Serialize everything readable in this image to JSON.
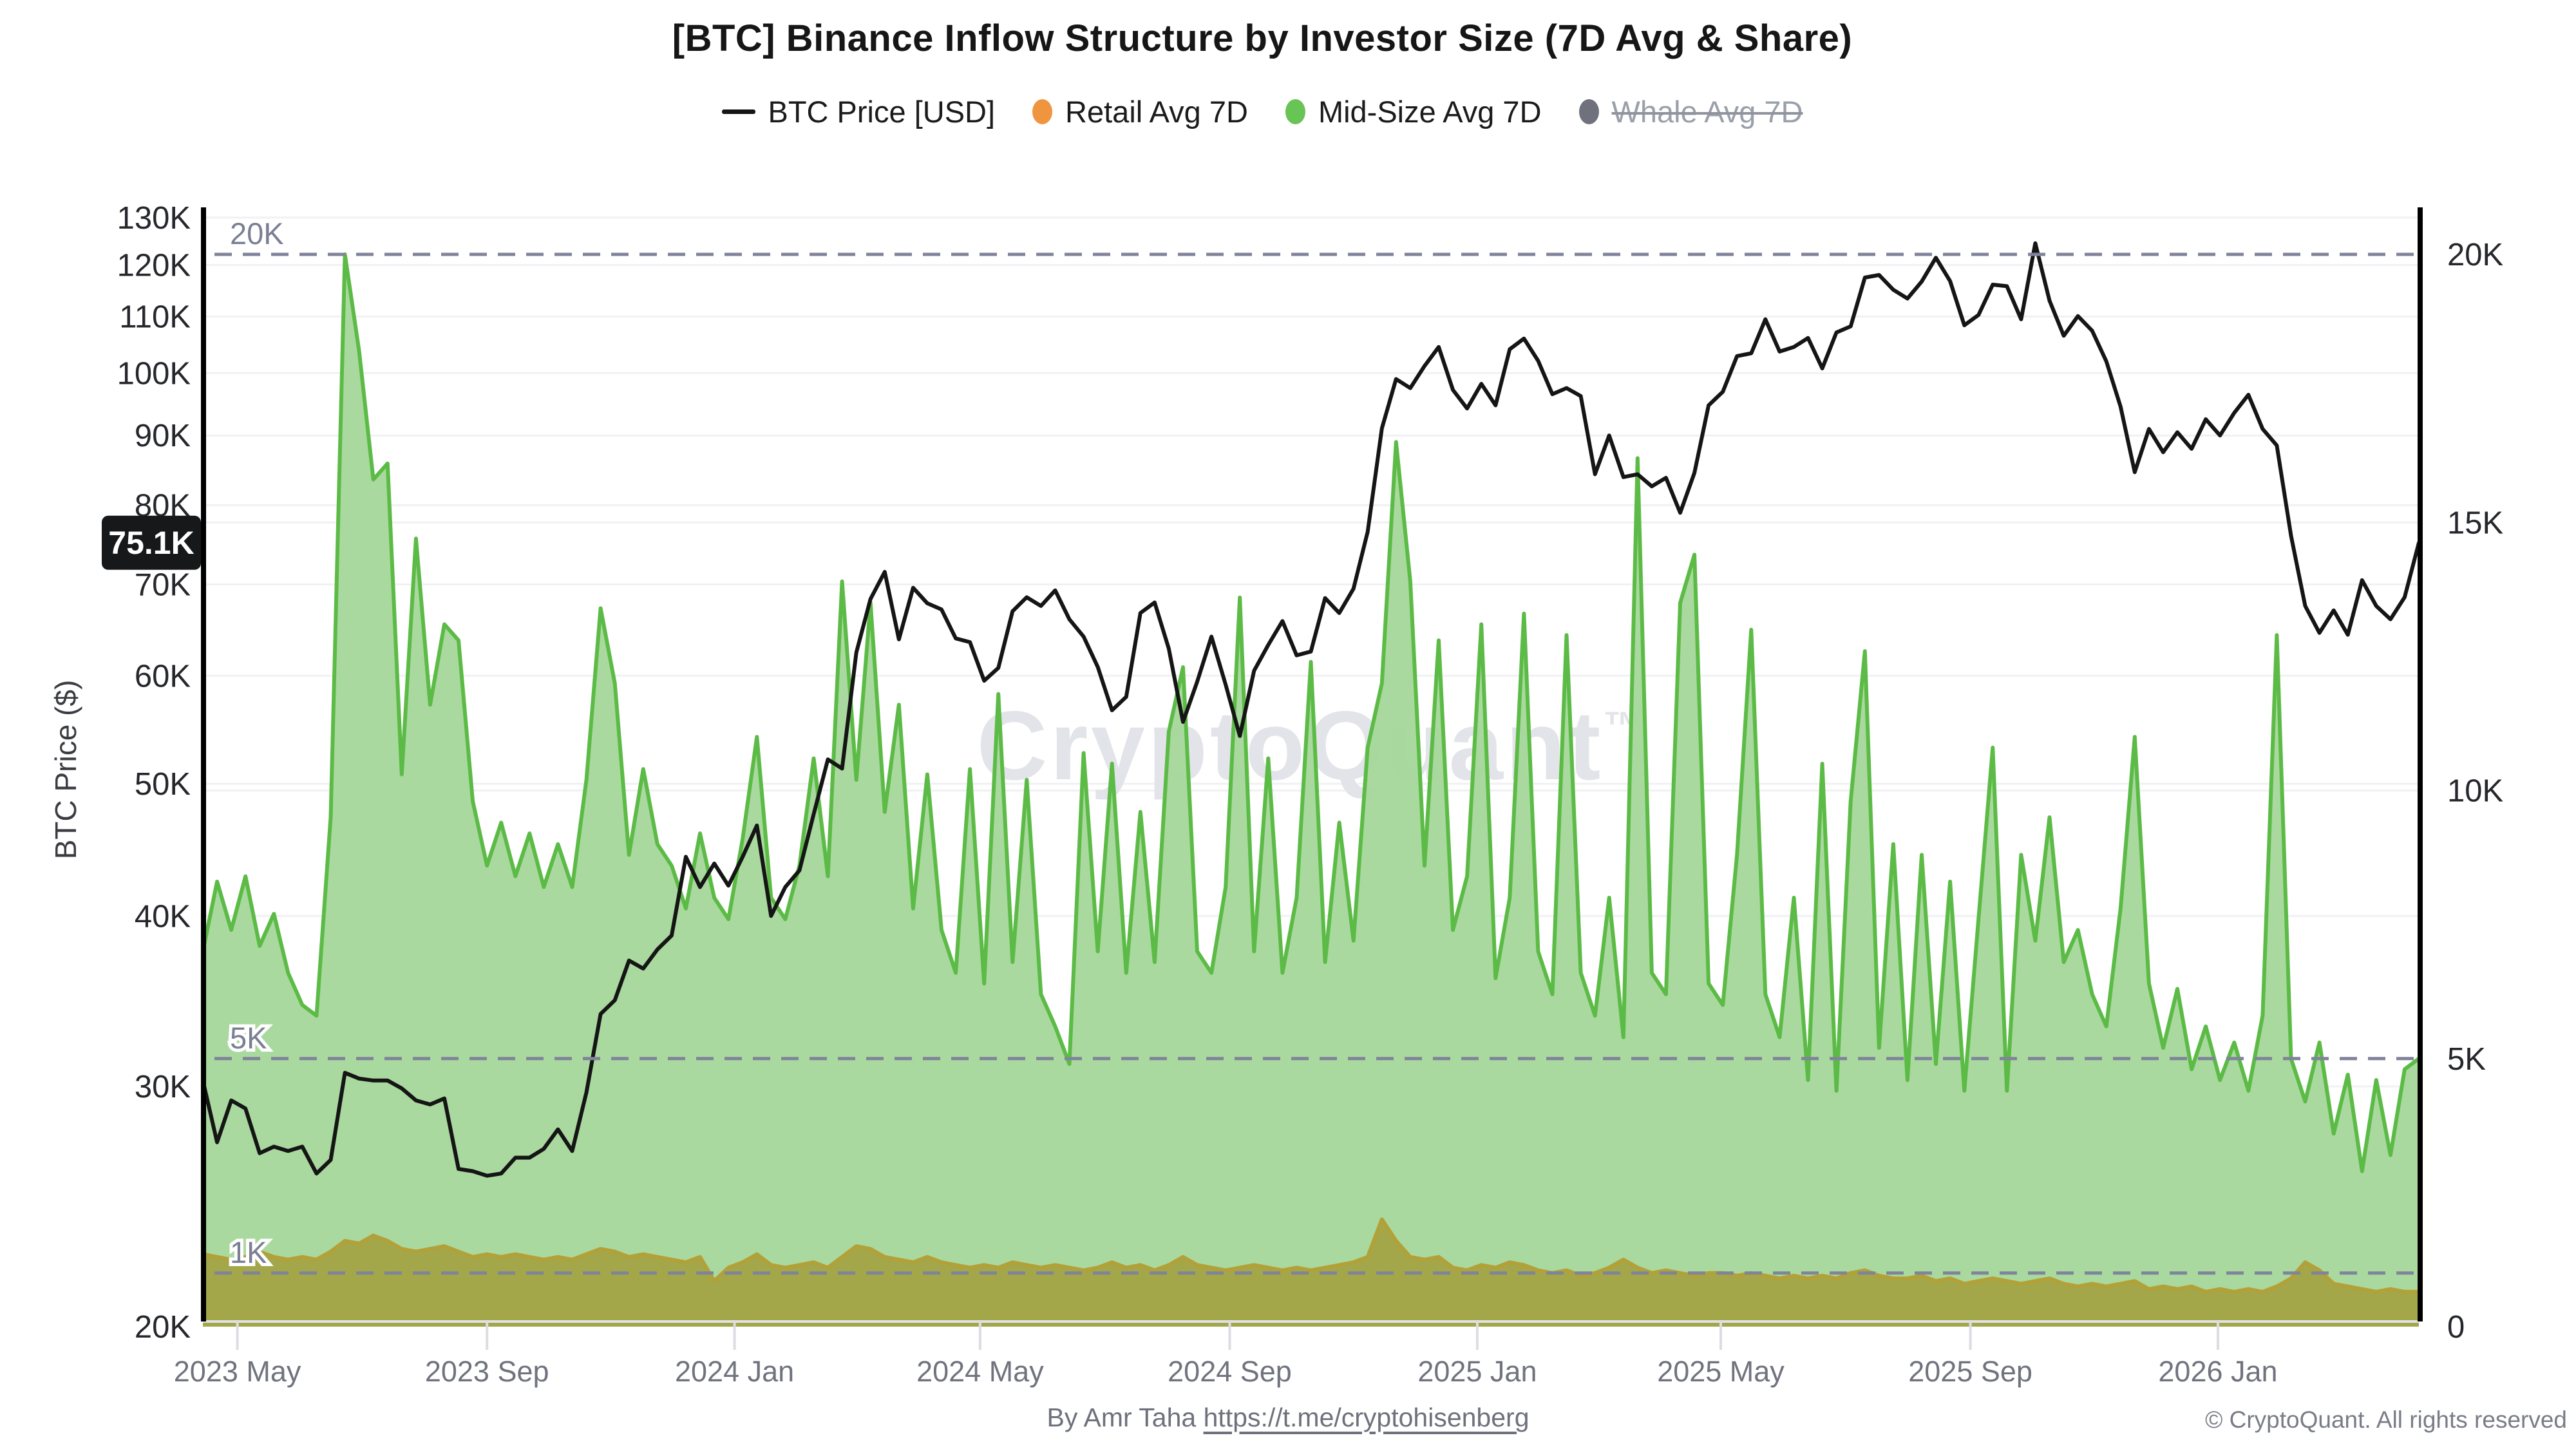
{
  "header": {
    "title": "[BTC] Binance Inflow Structure by Investor Size (7D Avg & Share)"
  },
  "legend": {
    "items": [
      {
        "label": "BTC Price [USD]",
        "marker": "line-swatch",
        "color": "#151515",
        "disabled": false
      },
      {
        "label": "Retail Avg 7D",
        "marker": "dot",
        "color": "#f0953f",
        "disabled": false
      },
      {
        "label": "Mid-Size Avg 7D",
        "marker": "dot",
        "color": "#68c455",
        "disabled": false
      },
      {
        "label": "Whale Avg 7D",
        "marker": "dot",
        "color": "#6f727d",
        "disabled": true
      }
    ]
  },
  "watermark": {
    "text": "CryptoQuant",
    "mark": "™",
    "color": "#e3e4e9"
  },
  "annotations": {
    "price_badge": {
      "label": "75.1K",
      "value": 75.1,
      "bg": "#17181a",
      "fg": "#ffffff"
    },
    "levels": [
      {
        "label": "20K",
        "value": 20
      },
      {
        "label": "5K",
        "value": 5
      },
      {
        "label": "1K",
        "value": 1
      }
    ],
    "level_color": "#80849a"
  },
  "footer": {
    "credit_prefix": "By Amr Taha ",
    "link": "https://t.me/cryptohisenberg",
    "copyright": "© CryptoQuant. All rights reserved"
  },
  "chart_data": {
    "type": "line+area",
    "start_date": "2023-04-14",
    "interval_days": 7,
    "x_total_days": 1092,
    "grid_on": true,
    "legend_position": "top-center",
    "axes": {
      "left": {
        "title": "BTC Price ($)",
        "scale": "log",
        "unit": "K USD",
        "ticks": [
          130,
          120,
          110,
          100,
          90,
          80,
          70,
          60,
          50,
          40,
          30,
          20
        ],
        "range_k": [
          20,
          132
        ],
        "text_color": "#26272c"
      },
      "right": {
        "scale": "linear",
        "unit": "K",
        "ticks": [
          20,
          15,
          10,
          5,
          0
        ],
        "range_k": [
          0,
          20
        ],
        "text_color": "#26272c"
      },
      "x": {
        "text_color": "#70737e",
        "ticks": [
          {
            "label": "2023 May",
            "day": 17
          },
          {
            "label": "2023 Sep",
            "day": 140
          },
          {
            "label": "2024 Jan",
            "day": 262
          },
          {
            "label": "2024 May",
            "day": 383
          },
          {
            "label": "2024 Sep",
            "day": 506
          },
          {
            "label": "2025 Jan",
            "day": 628
          },
          {
            "label": "2025 May",
            "day": 748
          },
          {
            "label": "2025 Sep",
            "day": 871
          },
          {
            "label": "2026 Jan",
            "day": 993
          }
        ]
      }
    },
    "series": [
      {
        "name": "Mid-Size Avg 7D",
        "type": "area",
        "axis": "right",
        "line_color": "#5cbb46",
        "fill_color": "#a5d79a",
        "values": [
          7.0,
          8.3,
          7.4,
          8.4,
          7.1,
          7.7,
          6.6,
          6.0,
          5.8,
          9.5,
          20.0,
          18.2,
          15.8,
          16.1,
          10.3,
          14.7,
          11.6,
          13.1,
          12.8,
          9.8,
          8.6,
          9.4,
          8.4,
          9.2,
          8.2,
          9.0,
          8.2,
          10.2,
          13.4,
          12.0,
          8.8,
          10.4,
          9.0,
          8.6,
          7.8,
          9.2,
          8.0,
          7.6,
          9.1,
          11.0,
          8.0,
          7.6,
          8.6,
          10.6,
          8.4,
          13.9,
          10.2,
          13.5,
          9.6,
          11.6,
          7.8,
          10.3,
          7.4,
          6.6,
          10.4,
          6.4,
          11.8,
          6.8,
          10.2,
          6.2,
          5.6,
          4.9,
          10.7,
          7.0,
          10.5,
          6.6,
          9.6,
          6.8,
          11.1,
          12.3,
          7.0,
          6.6,
          8.2,
          13.6,
          7.0,
          10.6,
          6.6,
          8.0,
          12.4,
          6.8,
          9.4,
          7.2,
          10.8,
          12.0,
          16.5,
          13.9,
          8.6,
          12.8,
          7.4,
          8.4,
          13.1,
          6.5,
          8.0,
          13.3,
          7.0,
          6.2,
          12.9,
          6.6,
          5.8,
          8.0,
          5.4,
          16.2,
          6.6,
          6.2,
          13.5,
          14.4,
          6.4,
          6.0,
          8.8,
          13.0,
          6.2,
          5.4,
          8.0,
          4.6,
          10.5,
          4.4,
          9.8,
          12.6,
          5.2,
          9.0,
          4.6,
          8.8,
          4.9,
          8.3,
          4.4,
          7.6,
          10.8,
          4.4,
          8.8,
          7.2,
          9.5,
          6.8,
          7.4,
          6.2,
          5.6,
          7.8,
          11.0,
          6.4,
          5.2,
          6.3,
          4.8,
          5.6,
          4.6,
          5.3,
          4.4,
          5.8,
          12.9,
          5.0,
          4.2,
          5.3,
          3.6,
          4.7,
          2.9,
          4.6,
          3.2,
          4.8,
          5.0
        ]
      },
      {
        "name": "Retail Avg 7D",
        "type": "area",
        "axis": "right",
        "line_color": "#b2a138",
        "fill_color": "#a2a447",
        "values": [
          1.35,
          1.3,
          1.25,
          1.3,
          1.4,
          1.3,
          1.25,
          1.3,
          1.25,
          1.4,
          1.6,
          1.55,
          1.7,
          1.6,
          1.45,
          1.4,
          1.45,
          1.5,
          1.4,
          1.3,
          1.35,
          1.3,
          1.35,
          1.3,
          1.25,
          1.3,
          1.25,
          1.35,
          1.45,
          1.4,
          1.3,
          1.35,
          1.3,
          1.25,
          1.2,
          1.3,
          0.85,
          1.1,
          1.2,
          1.35,
          1.15,
          1.1,
          1.15,
          1.2,
          1.1,
          1.3,
          1.5,
          1.45,
          1.3,
          1.25,
          1.2,
          1.3,
          1.2,
          1.15,
          1.1,
          1.15,
          1.1,
          1.2,
          1.15,
          1.1,
          1.15,
          1.1,
          1.05,
          1.1,
          1.2,
          1.1,
          1.15,
          1.05,
          1.15,
          1.3,
          1.15,
          1.1,
          1.05,
          1.1,
          1.15,
          1.1,
          1.05,
          1.1,
          1.05,
          1.1,
          1.15,
          1.2,
          1.3,
          2.0,
          1.6,
          1.3,
          1.25,
          1.3,
          1.1,
          1.05,
          1.15,
          1.1,
          1.2,
          1.15,
          1.05,
          1.0,
          1.05,
          0.95,
          1.0,
          1.1,
          1.25,
          1.1,
          1.0,
          1.05,
          1.0,
          0.95,
          1.0,
          1.0,
          0.95,
          1.0,
          0.95,
          0.9,
          0.95,
          0.9,
          0.95,
          0.9,
          1.0,
          1.05,
          0.95,
          0.9,
          0.9,
          0.95,
          0.85,
          0.9,
          0.8,
          0.85,
          0.9,
          0.85,
          0.8,
          0.85,
          0.9,
          0.8,
          0.75,
          0.8,
          0.75,
          0.8,
          0.85,
          0.7,
          0.75,
          0.7,
          0.75,
          0.65,
          0.7,
          0.65,
          0.7,
          0.65,
          0.75,
          0.9,
          1.2,
          1.05,
          0.8,
          0.75,
          0.7,
          0.65,
          0.7,
          0.65,
          0.65
        ]
      },
      {
        "name": "BTC Price [USD]",
        "type": "line",
        "axis": "left",
        "line_color": "#151515",
        "values": [
          30.3,
          27.3,
          29.3,
          28.9,
          26.8,
          27.1,
          26.9,
          27.1,
          25.9,
          26.5,
          30.7,
          30.4,
          30.3,
          30.3,
          29.9,
          29.3,
          29.1,
          29.4,
          26.1,
          26.0,
          25.8,
          25.9,
          26.6,
          26.6,
          27.0,
          27.9,
          26.9,
          29.7,
          33.9,
          34.7,
          37.1,
          36.6,
          37.8,
          38.7,
          44.2,
          42.0,
          43.7,
          42.1,
          44.2,
          46.6,
          40.0,
          42.0,
          43.2,
          47.5,
          52.1,
          51.3,
          62.4,
          68.3,
          71.5,
          63.8,
          69.6,
          67.8,
          67.1,
          63.9,
          63.5,
          59.5,
          60.8,
          66.9,
          68.5,
          67.5,
          69.3,
          66.0,
          64.1,
          60.9,
          56.6,
          57.9,
          66.7,
          67.9,
          62.8,
          55.5,
          59.4,
          64.1,
          59.1,
          54.2,
          60.5,
          63.2,
          65.8,
          62.1,
          62.5,
          68.4,
          66.7,
          69.5,
          76.5,
          91.1,
          99.0,
          97.5,
          101.2,
          104.5,
          97.2,
          94.2,
          98.2,
          94.7,
          104.1,
          106.0,
          102.1,
          96.5,
          97.5,
          96.2,
          84.3,
          90.0,
          83.9,
          84.3,
          82.6,
          83.8,
          79.0,
          84.5,
          94.7,
          96.9,
          102.9,
          103.4,
          109.5,
          103.7,
          104.5,
          106.1,
          100.8,
          107.1,
          108.2,
          117.5,
          118.0,
          115.1,
          113.4,
          116.7,
          121.5,
          116.8,
          108.4,
          110.3,
          116.1,
          115.8,
          109.5,
          124.5,
          113.0,
          106.5,
          110.1,
          107.4,
          102.0,
          94.5,
          84.6,
          91.0,
          87.5,
          90.5,
          88.0,
          92.5,
          90.0,
          93.5,
          96.4,
          91.0,
          88.5,
          76.0,
          67.5,
          64.5,
          67.0,
          64.3,
          70.5,
          67.5,
          66.0,
          68.5,
          75.1
        ]
      },
      {
        "name": "Whale Avg 7D",
        "type": "area",
        "axis": "right",
        "hidden": true,
        "line_color": "#6f727d",
        "fill_color": "#6f727d",
        "values": []
      }
    ]
  }
}
